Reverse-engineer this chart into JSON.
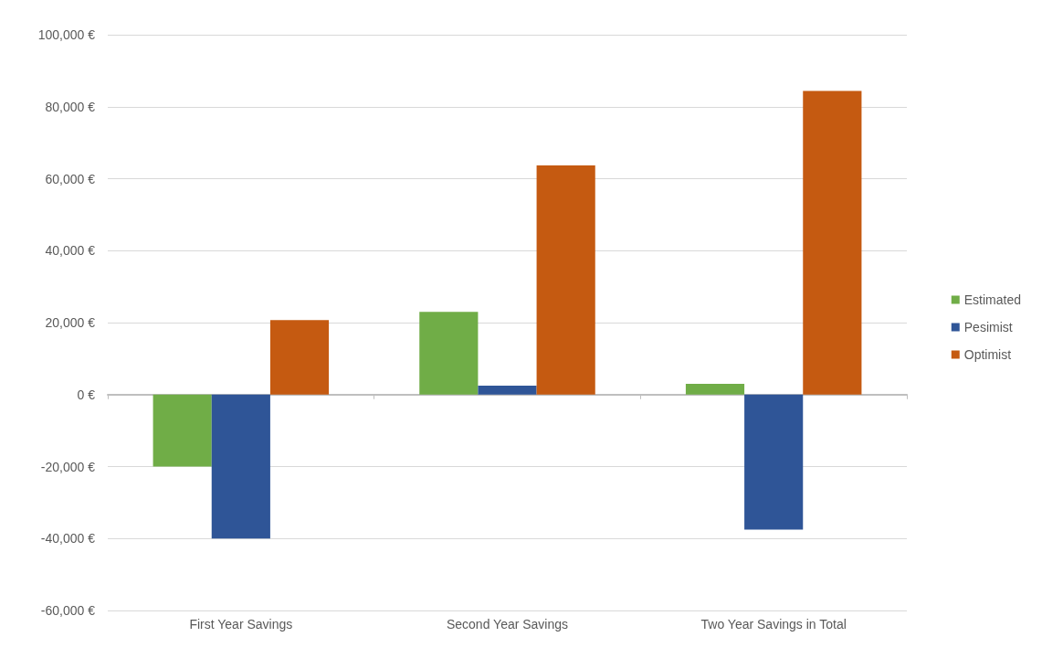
{
  "chart_data": {
    "type": "bar",
    "categories": [
      "First Year Savings",
      "Second Year Savings",
      "Two Year Savings in Total"
    ],
    "series": [
      {
        "name": "Estimated",
        "color": "#70ad47",
        "values": [
          -20000,
          23000,
          3000
        ]
      },
      {
        "name": "Pesimist",
        "color": "#2f5597",
        "values": [
          -40000,
          2500,
          -37500
        ]
      },
      {
        "name": "Optimist",
        "color": "#c55a11",
        "values": [
          20700,
          63700,
          84400
        ]
      }
    ],
    "ylim": [
      -60000,
      100000
    ],
    "yticks": [
      {
        "value": -60000,
        "label": "-60,000 €"
      },
      {
        "value": -40000,
        "label": "-40,000 €"
      },
      {
        "value": -20000,
        "label": "-20,000 €"
      },
      {
        "value": 0,
        "label": "0 €"
      },
      {
        "value": 20000,
        "label": "20,000 €"
      },
      {
        "value": 40000,
        "label": "40,000 €"
      },
      {
        "value": 60000,
        "label": "60,000 €"
      },
      {
        "value": 80000,
        "label": "80,000 €"
      },
      {
        "value": 100000,
        "label": "100,000 €"
      }
    ],
    "grid": "y",
    "legend": "right"
  }
}
